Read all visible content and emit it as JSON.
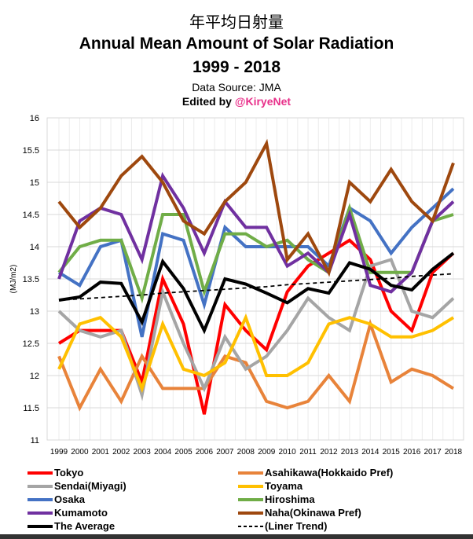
{
  "chart_data": {
    "type": "line",
    "title_jp": "年平均日射量",
    "title": "Annual Mean Amount of Solar Radiation",
    "subtitle": "1999 - 2018",
    "source": "Data Source: JMA",
    "edited_prefix": "Edited by ",
    "edited_handle": "@KiryeNet",
    "ylabel": "(MJ/m2)",
    "xlabel": "",
    "ylim": [
      11,
      16
    ],
    "yticks": [
      11,
      11.5,
      12,
      12.5,
      13,
      13.5,
      14,
      14.5,
      15,
      15.5,
      16
    ],
    "grid": true,
    "legend_placement": "bottom",
    "x": [
      1999,
      2000,
      2001,
      2002,
      2003,
      2004,
      2005,
      2006,
      2007,
      2008,
      2009,
      2010,
      2011,
      2012,
      2013,
      2014,
      2015,
      2016,
      2017,
      2018
    ],
    "series": [
      {
        "name": "Tokyo",
        "color": "#ff0000",
        "values": [
          12.5,
          12.7,
          12.7,
          12.7,
          11.9,
          13.5,
          12.8,
          11.4,
          13.1,
          12.7,
          12.4,
          13.3,
          13.7,
          13.9,
          14.1,
          13.8,
          13.0,
          12.7,
          13.6,
          13.9
        ]
      },
      {
        "name": "Asahikawa(Hokkaido Pref)",
        "color": "#e8833a",
        "values": [
          12.3,
          11.5,
          12.1,
          11.6,
          12.3,
          11.8,
          11.8,
          11.8,
          12.3,
          12.2,
          11.6,
          11.5,
          11.6,
          12.0,
          11.6,
          12.8,
          11.9,
          12.1,
          12.0,
          11.8
        ]
      },
      {
        "name": "Sendai(Miyagi)",
        "color": "#a5a5a5",
        "values": [
          13.0,
          12.7,
          12.6,
          12.7,
          11.7,
          13.3,
          12.5,
          11.8,
          12.6,
          12.1,
          12.3,
          12.7,
          13.2,
          12.9,
          12.7,
          13.7,
          13.8,
          13.0,
          12.9,
          13.2
        ]
      },
      {
        "name": "Toyama",
        "color": "#ffc000",
        "values": [
          12.1,
          12.8,
          12.9,
          12.6,
          11.8,
          12.8,
          12.1,
          12.0,
          12.2,
          12.9,
          12.0,
          12.0,
          12.2,
          12.8,
          12.9,
          12.8,
          12.6,
          12.6,
          12.7,
          12.9
        ]
      },
      {
        "name": "Osaka",
        "color": "#4472c4",
        "values": [
          13.6,
          13.4,
          14.0,
          14.1,
          12.6,
          14.2,
          14.1,
          13.1,
          14.3,
          14.0,
          14.0,
          14.0,
          14.0,
          13.7,
          14.6,
          14.4,
          13.9,
          14.3,
          14.6,
          14.9
        ]
      },
      {
        "name": "Hiroshima",
        "color": "#70ad47",
        "values": [
          13.6,
          14.0,
          14.1,
          14.1,
          13.2,
          14.5,
          14.5,
          13.3,
          14.2,
          14.2,
          14.0,
          14.1,
          13.8,
          13.6,
          14.6,
          13.6,
          13.6,
          13.6,
          14.4,
          14.5
        ]
      },
      {
        "name": "Kumamoto",
        "color": "#7030a0",
        "values": [
          13.5,
          14.4,
          14.6,
          14.5,
          13.8,
          15.1,
          14.6,
          13.9,
          14.7,
          14.3,
          14.3,
          13.7,
          13.9,
          13.6,
          14.5,
          13.4,
          13.3,
          13.6,
          14.4,
          14.7
        ]
      },
      {
        "name": "Naha(Okinawa Pref)",
        "color": "#9e480e",
        "values": [
          14.7,
          14.3,
          14.6,
          15.1,
          15.4,
          15.0,
          14.4,
          14.2,
          14.7,
          15.0,
          15.6,
          13.8,
          14.2,
          13.6,
          15.0,
          14.7,
          15.2,
          14.7,
          14.4,
          15.3
        ]
      },
      {
        "name": "The Average",
        "color": "#000000",
        "values": [
          13.17,
          13.22,
          13.45,
          13.43,
          12.83,
          13.77,
          13.35,
          12.7,
          13.5,
          13.42,
          13.28,
          13.13,
          13.35,
          13.28,
          13.75,
          13.65,
          13.4,
          13.33,
          13.65,
          13.9
        ]
      },
      {
        "name": "(Liner Trend)",
        "color": "#000000",
        "dashed": true,
        "values": [
          13.17,
          13.19,
          13.21,
          13.23,
          13.25,
          13.28,
          13.3,
          13.32,
          13.34,
          13.36,
          13.38,
          13.41,
          13.43,
          13.45,
          13.47,
          13.49,
          13.51,
          13.54,
          13.56,
          13.58
        ]
      }
    ]
  }
}
